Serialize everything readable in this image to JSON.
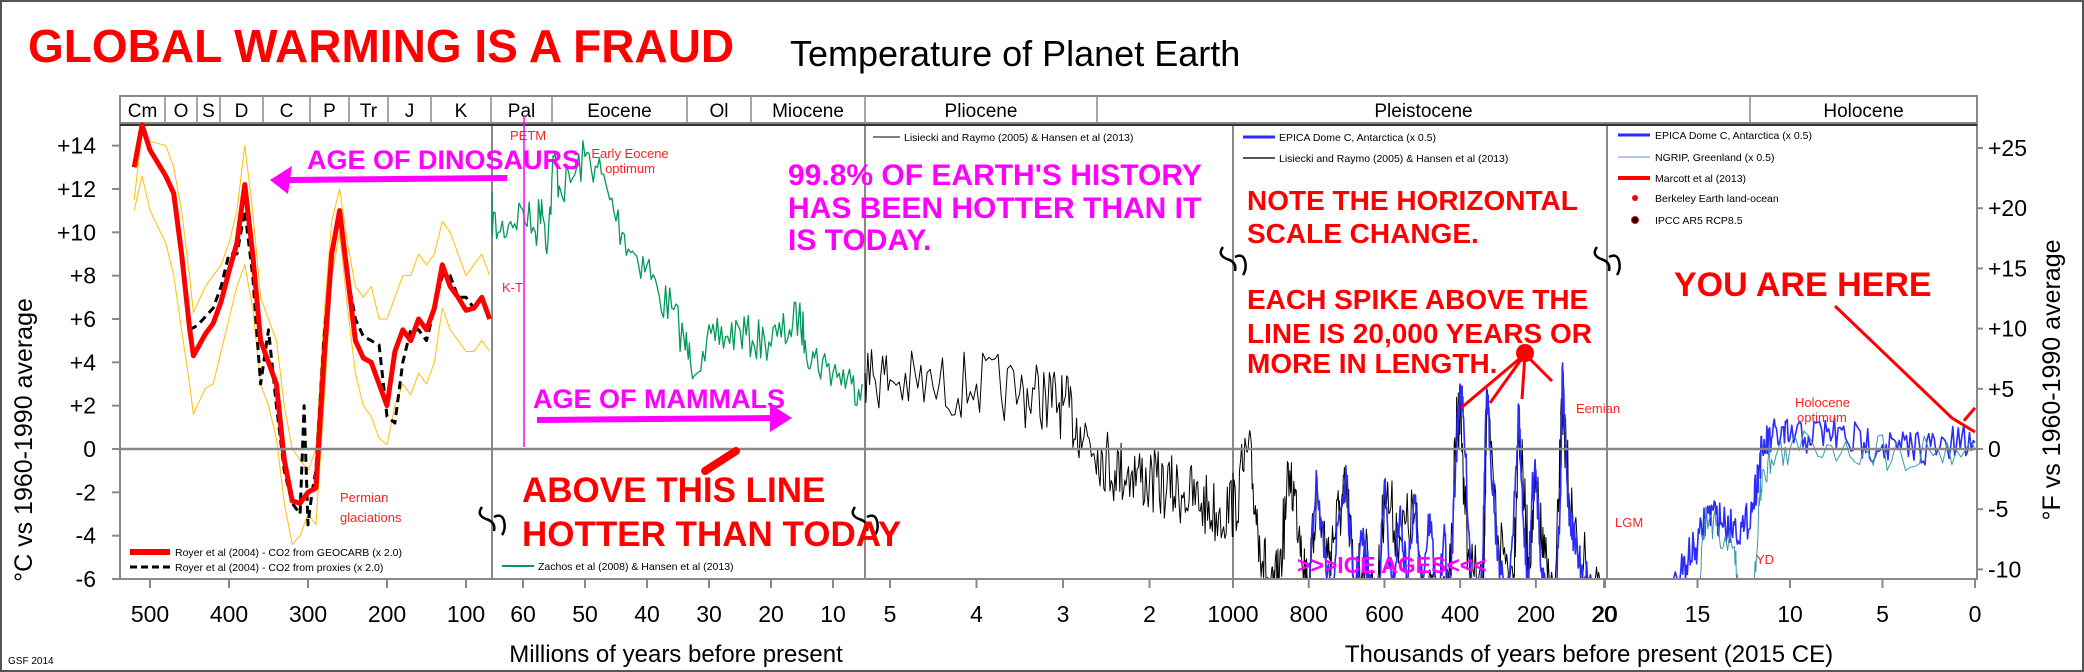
{
  "title": "GLOBAL WARMING IS A FRAUD",
  "subtitle": "Temperature of Planet Earth",
  "credit": "GSF 2014",
  "colors": {
    "title": "#ff0000",
    "magenta": "#ff00ff",
    "geocarb": "#ff0000",
    "band": "#ffc000",
    "zachos": "#009a5a",
    "lr": "#000000",
    "epica": "#2b2bff",
    "ngrip": "#3a9aa8"
  },
  "periods": [
    "Cm",
    "O",
    "S",
    "D",
    "C",
    "P",
    "Tr",
    "J",
    "K",
    "Pal",
    "Eocene",
    "Ol",
    "Miocene",
    "Pliocene",
    "Pleistocene",
    "Holocene"
  ],
  "annotations": {
    "dinosaurs": "AGE OF DINOSAURS",
    "mammals": "AGE OF MAMMALS",
    "history": [
      "99.8% OF EARTH'S HISTORY",
      "HAS BEEN HOTTER THAN IT",
      "IS TODAY."
    ],
    "scale": [
      "NOTE THE HORIZONTAL",
      "SCALE CHANGE."
    ],
    "spike": [
      "EACH SPIKE ABOVE THE",
      "LINE IS 20,000 YEARS OR",
      "MORE IN LENGTH."
    ],
    "here": "YOU ARE HERE",
    "above": [
      "ABOVE THIS LINE",
      "HOTTER THAN TODAY"
    ],
    "ice": ">>>ICE AGES<<<",
    "permian": [
      "Permian",
      "glaciations"
    ],
    "petm": "PETM",
    "kt": "K-T",
    "eocene_opt": [
      "Early Eocene",
      "optimum"
    ],
    "eemian": "Eemian",
    "lgm": "LGM",
    "yd": "YD",
    "holocene_opt": [
      "Holocene",
      "optimum"
    ]
  },
  "legends": {
    "p1": [
      "Royer et al (2004) - CO2 from GEOCARB (x 2.0)",
      "Royer et al (2004) - CO2 from proxies (x 2.0)"
    ],
    "p2": [
      "Zachos et al (2008) & Hansen et al (2013)"
    ],
    "p3": [
      "Lisiecki and Raymo (2005) & Hansen et al (2013)"
    ],
    "p4": [
      "EPICA Dome C, Antarctica (x 0.5)",
      "Lisiecki and Raymo (2005) & Hansen et al (2013)"
    ],
    "p5": [
      "EPICA Dome C, Antarctica (x 0.5)",
      "NGRIP, Greenland (x 0.5)",
      "Marcott et al (2013)",
      "Berkeley Earth land-ocean",
      "IPCC AR5 RCP8.5"
    ]
  },
  "chart_data": {
    "type": "line",
    "title": "Temperature of Planet Earth",
    "ylabel_left": "°C vs 1960-1990 average",
    "ylabel_right": "°F vs 1960-1990 average",
    "xlabel_ma": "Millions of years before present",
    "xlabel_ka": "Thousands of years before present (2015 CE)",
    "ylim_c": [
      -6,
      15
    ],
    "yticks_c": [
      "+14",
      "+12",
      "+10",
      "+8",
      "+6",
      "+4",
      "+2",
      "0",
      "-2",
      "-4",
      "-6"
    ],
    "yticks_f": [
      "+25",
      "+20",
      "+15",
      "+10",
      "+5",
      "0",
      "-5",
      "-10"
    ],
    "panels": [
      {
        "unit": "Ma",
        "xlim": [
          538,
          66
        ],
        "ticks": [
          "500",
          "400",
          "300",
          "200",
          "100"
        ],
        "series": [
          {
            "name": "Royer et al (2004) - CO2 from GEOCARB (x 2.0)",
            "style": "geocarb",
            "x": [
              520,
              510,
              500,
              480,
              470,
              460,
              450,
              445,
              430,
              420,
              410,
              400,
              390,
              380,
              370,
              360,
              350,
              340,
              330,
              320,
              310,
              300,
              290,
              280,
              270,
              260,
              250,
              240,
              230,
              220,
              210,
              200,
              190,
              180,
              170,
              160,
              150,
              140,
              130,
              120,
              110,
              100,
              90,
              80,
              70
            ],
            "y": [
              13,
              15,
              13.8,
              12.6,
              11.8,
              9,
              5.6,
              4.3,
              5.3,
              5.8,
              6.8,
              8.2,
              9.5,
              12.2,
              9,
              5,
              4,
              3,
              -0.5,
              -2.4,
              -2.5,
              -2,
              -1.8,
              4,
              9,
              11,
              8,
              5,
              4.2,
              4,
              3,
              2,
              4.5,
              5.5,
              5,
              6,
              5.5,
              6.5,
              8.5,
              7.5,
              7,
              6.4,
              6.5,
              7,
              6
            ]
          },
          {
            "name": "Royer et al (2004) - CO2 from proxies (x 2.0)",
            "style": "proxies",
            "x": [
              450,
              440,
              420,
              410,
              400,
              390,
              380,
              370,
              360,
              350,
              340,
              330,
              320,
              310,
              305,
              300,
              295,
              290,
              280,
              270,
              260,
              250,
              240,
              230,
              220,
              210,
              200,
              190,
              180,
              170,
              160,
              150,
              140,
              130,
              120,
              110,
              100,
              90,
              80,
              70
            ],
            "y": [
              5.5,
              5.7,
              6.5,
              7.5,
              9,
              9,
              11,
              8,
              3,
              5.5,
              2,
              -1,
              -2.5,
              -3,
              2,
              -3.5,
              -2,
              -1,
              5,
              9,
              11,
              8,
              6,
              5.2,
              5,
              4.8,
              1.5,
              1.2,
              4,
              5.5,
              5.5,
              5,
              6.5,
              8,
              8,
              7,
              7,
              6.5,
              7,
              6
            ]
          },
          {
            "style": "band",
            "x": [
              520,
              510,
              500,
              480,
              470,
              460,
              450,
              445,
              430,
              420,
              410,
              400,
              390,
              380,
              370,
              360,
              350,
              340,
              330,
              320,
              310,
              300,
              290,
              280,
              270,
              260,
              250,
              240,
              230,
              220,
              210,
              200,
              190,
              180,
              170,
              160,
              150,
              140,
              130,
              120,
              110,
              100,
              90,
              80,
              70
            ],
            "y": [
              11.5,
              14.7,
              14.2,
              14,
              13,
              11,
              8,
              6.3,
              7.5,
              8,
              8.5,
              9.5,
              11,
              14,
              11,
              7,
              6,
              5,
              2,
              0,
              -0.5,
              -1,
              0,
              6,
              10.5,
              12,
              9.5,
              7.5,
              7,
              7.5,
              6,
              6,
              7,
              8,
              8,
              9,
              8.5,
              9,
              10.5,
              10,
              9,
              8,
              8.5,
              9,
              8
            ]
          },
          {
            "style": "band",
            "x": [
              520,
              510,
              500,
              480,
              470,
              460,
              450,
              445,
              430,
              420,
              410,
              400,
              390,
              380,
              370,
              360,
              350,
              340,
              330,
              320,
              310,
              300,
              290,
              280,
              270,
              260,
              250,
              240,
              230,
              220,
              210,
              200,
              190,
              180,
              170,
              160,
              150,
              140,
              130,
              120,
              110,
              100,
              90,
              80,
              70
            ],
            "y": [
              11,
              12.6,
              11,
              9.5,
              8,
              5.5,
              3,
              1.6,
              2.8,
              3,
              4.5,
              6,
              7.5,
              8.5,
              6.5,
              3,
              2,
              0.5,
              -2.5,
              -4.4,
              -4,
              -3,
              -3.5,
              2,
              8,
              10,
              6.5,
              3.5,
              2,
              1.5,
              0.5,
              0.2,
              2,
              3,
              2.5,
              3.5,
              3,
              4,
              6.5,
              5.5,
              5,
              4.5,
              4.5,
              5,
              4.5
            ]
          }
        ]
      },
      {
        "unit": "Ma",
        "xlim": [
          66,
          5.3
        ],
        "ticks": [
          "60",
          "50",
          "40",
          "30",
          "20",
          "10"
        ],
        "series": [
          {
            "name": "Zachos et al (2008) & Hansen et al (2013)",
            "style": "zachos",
            "x": [
              65.5,
              64,
              62,
              60,
              58,
              57,
              56,
              55,
              54,
              52,
              50,
              48,
              46,
              44,
              42,
              40,
              38,
              36,
              34,
              33,
              31,
              29,
              27,
              25,
              23,
              21,
              19,
              17,
              15.5,
              14.5,
              13,
              11,
              9,
              7,
              5.3
            ],
            "y": [
              11,
              10,
              10.5,
              11,
              10,
              11.5,
              9.5,
              13.5,
              12,
              12.5,
              13.5,
              13,
              11.5,
              10,
              9,
              8.5,
              7,
              6.5,
              5,
              4,
              4.5,
              5,
              5.2,
              5.5,
              5,
              5,
              5.2,
              5.5,
              6.2,
              5,
              4.2,
              3.8,
              3.5,
              3,
              3
            ]
          }
        ]
      },
      {
        "unit": "Ma",
        "xlim": [
          5.3,
          1.0
        ],
        "ticks": [
          "5",
          "4",
          "3",
          "2"
        ],
        "series": [
          {
            "name": "Lisiecki and Raymo (2005) & Hansen et al (2013)",
            "style": "lr",
            "x": [
              5.3,
              5,
              4.5,
              4,
              3.5,
              3.2,
              3,
              2.8,
              2.6,
              2.4,
              2.2,
              2,
              1.8,
              1.6,
              1.4,
              1.2,
              1.0
            ],
            "y": [
              3.5,
              3.2,
              2.8,
              3,
              2.6,
              2.4,
              2,
              1,
              0,
              -1,
              -1,
              -1.5,
              -1.8,
              -2,
              -2.5,
              -3,
              -2.5
            ]
          }
        ]
      },
      {
        "unit": "ka",
        "xlim": [
          1000,
          20
        ],
        "ticks": [
          "1000",
          "800",
          "600",
          "400",
          "200",
          "20"
        ],
        "series": [
          {
            "name": "EPICA Dome C, Antarctica (x 0.5)",
            "style": "epica",
            "x": [
              800,
              780,
              760,
              740,
              720,
              700,
              680,
              660,
              640,
              620,
              600,
              580,
              560,
              540,
              520,
              500,
              480,
              460,
              440,
              430,
              410,
              400,
              390,
              370,
              350,
              340,
              330,
              320,
              300,
              280,
              260,
              245,
              235,
              220,
              210,
              200,
              185,
              170,
              150,
              135,
              130,
              125,
              115,
              100,
              80,
              60,
              40,
              20
            ],
            "y": [
              -7,
              -1,
              -5,
              -7,
              -3,
              -1.5,
              -7,
              -4,
              -6,
              -8.5,
              -1.5,
              -7,
              -3,
              -6,
              -2.5,
              -6,
              -3,
              -7.5,
              -4,
              -8,
              0,
              3,
              1,
              -6,
              -8,
              -5,
              2.8,
              0,
              -5,
              -7,
              -4,
              2,
              -3,
              -6.5,
              -2,
              -1,
              -5.5,
              -7,
              -8,
              -2,
              3.5,
              1.5,
              -2.5,
              -4,
              -5.5,
              -6,
              -7,
              -8.5
            ]
          },
          {
            "name": "Lisiecki and Raymo (2005) & Hansen et al (2013)",
            "style": "lr",
            "x": [
              1000,
              960,
              930,
              900,
              880,
              850,
              820,
              800,
              780,
              750,
              720,
              700,
              680,
              650,
              620,
              600,
              560,
              520,
              500,
              460,
              430,
              410,
              400,
              380,
              340,
              330,
              300,
              260,
              245,
              220,
              200,
              180,
              150,
              130,
              125,
              100,
              60,
              20
            ],
            "y": [
              -3,
              0,
              -4,
              -7,
              -6,
              -1,
              -4,
              -7,
              -2,
              -5,
              -3,
              -2,
              -6,
              -5,
              -7.5,
              -2,
              -4,
              -3,
              -6,
              -8,
              -7,
              1,
              2,
              -5,
              -7,
              1.5,
              -4,
              -6,
              1,
              -5,
              -2,
              -5,
              -7.5,
              2.5,
              1,
              -4,
              -6,
              -8
            ]
          }
        ]
      },
      {
        "unit": "ka",
        "xlim": [
          20,
          0
        ],
        "ticks": [
          "20",
          "15",
          "10",
          "5",
          "0"
        ],
        "series": [
          {
            "name": "EPICA Dome C, Antarctica (x 0.5)",
            "style": "epica",
            "x": [
              20,
              19,
              18,
              17,
              16,
              15.5,
              15,
              14.5,
              14,
              13.5,
              13,
              12.5,
              12,
              11.7,
              11.5,
              11,
              10.5,
              10,
              9,
              8,
              7,
              6,
              5,
              4,
              3,
              2,
              1,
              0
            ],
            "y": [
              -8.5,
              -7.5,
              -7.5,
              -7,
              -6,
              -5,
              -4.5,
              -3,
              -3,
              -3.5,
              -3.5,
              -3.8,
              -2.5,
              -1,
              0,
              0.5,
              0.6,
              0.5,
              0.6,
              0.8,
              0.5,
              0.3,
              0.2,
              0,
              0.2,
              0,
              0.2,
              0.3
            ]
          },
          {
            "name": "NGRIP, Greenland (x 0.5)",
            "style": "ngrip",
            "x": [
              20,
              19,
              18,
              17,
              16,
              15.5,
              15,
              14.7,
              14.5,
              14,
              13,
              12.8,
              12.5,
              12,
              11.7,
              11.5,
              11,
              10,
              8,
              6,
              4,
              2,
              0
            ],
            "y": [
              -9,
              -8.5,
              -9,
              -8.5,
              -10,
              -10,
              -9,
              -4,
              -3,
              -3.5,
              -4.5,
              -6.5,
              -7,
              -7.5,
              -3,
              -1,
              -0.5,
              0,
              0.2,
              0,
              -0.2,
              0,
              0
            ]
          },
          {
            "name": "Marcott et al (2013)",
            "style": "marcott",
            "x": [
              0.6,
              0
            ],
            "y": [
              1.3,
              1.9
            ]
          }
        ]
      }
    ]
  }
}
